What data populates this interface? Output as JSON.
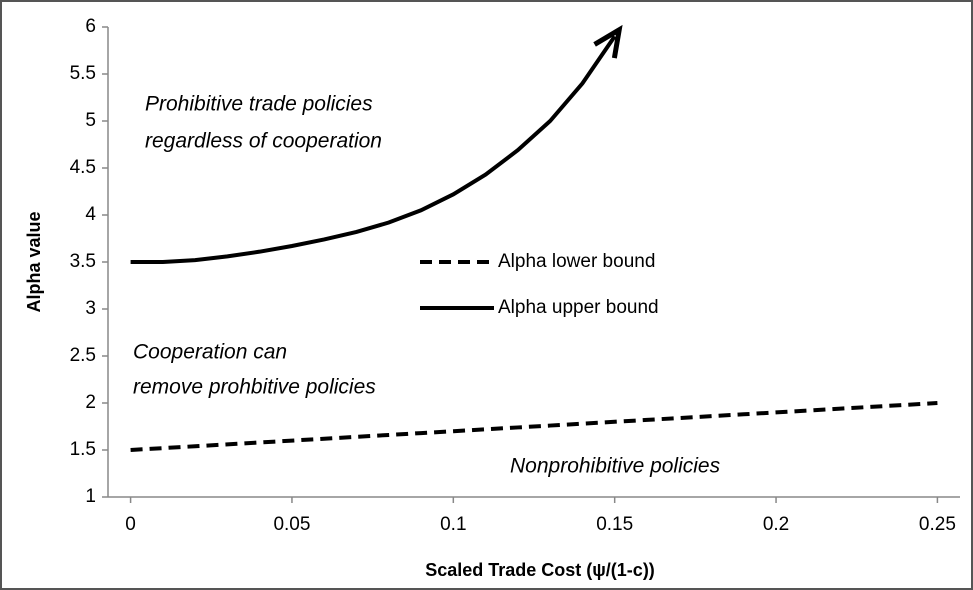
{
  "chart_data": {
    "type": "line",
    "xlabel": "Scaled Trade Cost (ψ/(1-c))",
    "ylabel": "Alpha value",
    "xlim": [
      -0.007,
      0.257
    ],
    "xticks": [
      0,
      0.05,
      0.1,
      0.15,
      0.2,
      0.25
    ],
    "ylim": [
      1,
      6
    ],
    "yticks": [
      1,
      1.5,
      2,
      2.5,
      3,
      3.5,
      4,
      4.5,
      5,
      5.5,
      6
    ],
    "legend": "center",
    "series": [
      {
        "name": "Alpha lower bound",
        "color": "#000000",
        "dash": true,
        "x": [
          0,
          0.01,
          0.02,
          0.03,
          0.04,
          0.05,
          0.06,
          0.07,
          0.08,
          0.09,
          0.1,
          0.11,
          0.12,
          0.13,
          0.14,
          0.15,
          0.16,
          0.17,
          0.18,
          0.19,
          0.2,
          0.21,
          0.22,
          0.23,
          0.24,
          0.25
        ],
        "values": [
          1.5,
          1.52,
          1.54,
          1.56,
          1.58,
          1.6,
          1.62,
          1.64,
          1.66,
          1.68,
          1.7,
          1.72,
          1.74,
          1.76,
          1.78,
          1.8,
          1.82,
          1.84,
          1.86,
          1.88,
          1.9,
          1.92,
          1.94,
          1.96,
          1.98,
          2.0
        ]
      },
      {
        "name": "Alpha upper bound",
        "color": "#000000",
        "dash": false,
        "arrow": true,
        "x": [
          0,
          0.01,
          0.02,
          0.03,
          0.04,
          0.05,
          0.06,
          0.07,
          0.08,
          0.09,
          0.1,
          0.11,
          0.12,
          0.13,
          0.14,
          0.15
        ],
        "values": [
          3.5,
          3.5,
          3.52,
          3.56,
          3.61,
          3.67,
          3.74,
          3.82,
          3.92,
          4.05,
          4.22,
          4.43,
          4.69,
          5.0,
          5.4,
          5.9
        ]
      }
    ],
    "annotations": [
      "Prohibitive trade policies",
      "regardless of cooperation",
      "Cooperation can",
      "remove  prohbitive policies",
      "Nonprohibitive policies"
    ]
  }
}
